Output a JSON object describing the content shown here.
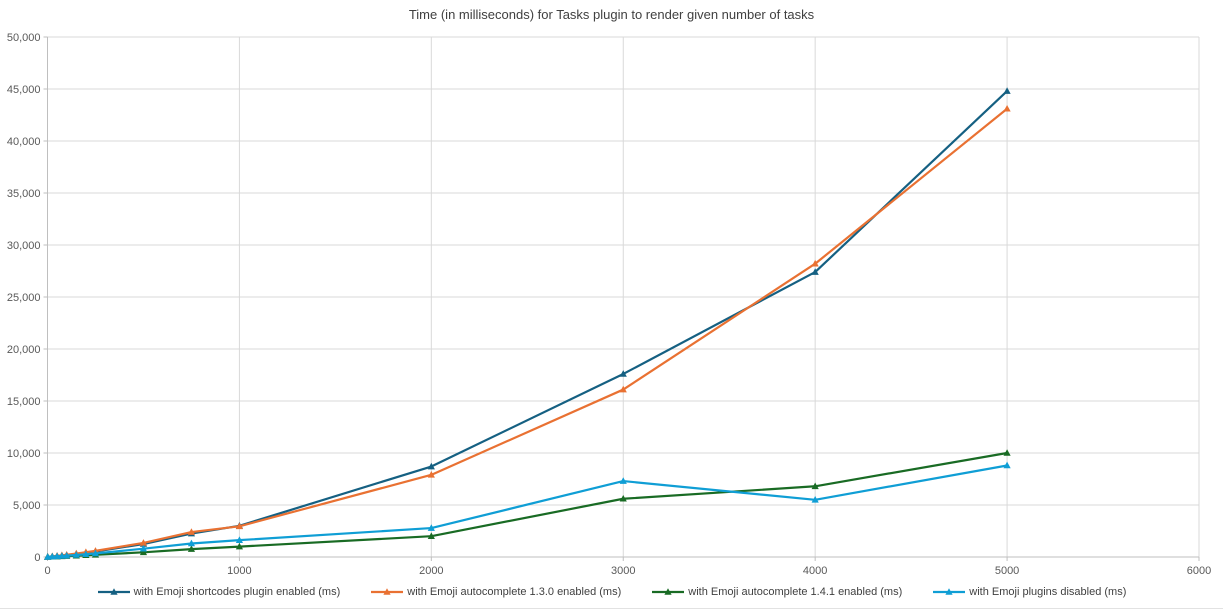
{
  "chart_data": {
    "type": "line",
    "title": "Time (in milliseconds) for Tasks plugin to render given number of tasks",
    "xlabel": "",
    "ylabel": "",
    "xlim": [
      0,
      6000
    ],
    "ylim": [
      0,
      50000
    ],
    "x_tick_step": 1000,
    "y_tick_step": 5000,
    "x_tick_labels": [
      "0",
      "1000",
      "2000",
      "3000",
      "4000",
      "5000",
      "6000"
    ],
    "y_tick_labels": [
      "0",
      "5,000",
      "10,000",
      "15,000",
      "20,000",
      "25,000",
      "30,000",
      "35,000",
      "40,000",
      "45,000",
      "50,000"
    ],
    "grid": true,
    "legend_position": "bottom",
    "x": [
      1,
      25,
      50,
      75,
      100,
      150,
      200,
      250,
      500,
      750,
      1000,
      2000,
      3000,
      4000,
      5000
    ],
    "series": [
      {
        "name": "with Emoji shortcodes plugin enabled (ms)",
        "color": "#156082",
        "values": [
          15,
          55,
          95,
          140,
          190,
          290,
          400,
          520,
          1250,
          2250,
          3000,
          8700,
          17600,
          27400,
          44800
        ]
      },
      {
        "name": "with Emoji autocomplete 1.3.0 enabled (ms)",
        "color": "#E97132",
        "values": [
          20,
          65,
          110,
          160,
          215,
          330,
          460,
          590,
          1350,
          2400,
          2950,
          7900,
          16100,
          28200,
          43100
        ]
      },
      {
        "name": "with Emoji autocomplete 1.4.1 enabled (ms)",
        "color": "#196B24",
        "values": [
          10,
          25,
          45,
          65,
          85,
          125,
          170,
          215,
          450,
          760,
          1000,
          2000,
          5600,
          6800,
          10000
        ]
      },
      {
        "name": "with Emoji plugins disabled (ms)",
        "color": "#0F9ED5",
        "values": [
          10,
          35,
          65,
          95,
          130,
          195,
          265,
          340,
          800,
          1300,
          1620,
          2780,
          7300,
          5500,
          8800
        ]
      }
    ],
    "colors": {
      "background": "#FFFFFF",
      "gridline": "#D9D9D9",
      "axis_line": "#BFBFBF",
      "tick_label": "#595959",
      "title_text": "#404040",
      "legend_text": "#404040"
    }
  }
}
